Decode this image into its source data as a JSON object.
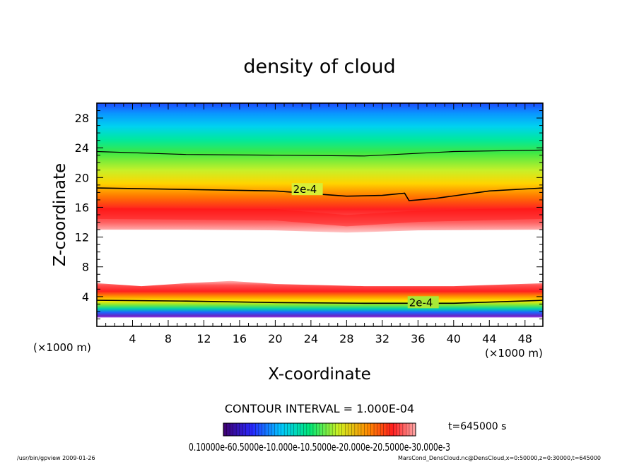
{
  "chart_data": {
    "type": "heatmap",
    "title": "density of cloud",
    "xlabel": "X-coordinate",
    "ylabel": "Z-coordinate",
    "x_unit": "(×1000 m)",
    "y_unit": "(×1000 m)",
    "xlim": [
      0,
      50
    ],
    "ylim": [
      0,
      30
    ],
    "x_ticks": [
      4,
      8,
      12,
      16,
      20,
      24,
      28,
      32,
      36,
      40,
      44,
      48
    ],
    "y_ticks": [
      4,
      8,
      12,
      16,
      20,
      24,
      28
    ],
    "contour_interval_label": "CONTOUR INTERVAL = 1.000E-04",
    "time_label": "t=645000 s",
    "colorbar_label": "0.10000e-60.5000e-10.000e-10.5000e-20.000e-20.5000e-30.000e-3",
    "contour_labels": [
      {
        "text": "2e-4",
        "x": 22,
        "z": 18.4
      },
      {
        "text": "2e-4",
        "x": 35,
        "z": 3.2
      }
    ],
    "upper_layer": {
      "top_boundary_z": 30,
      "bottom_boundary_z": [
        [
          0,
          13.0
        ],
        [
          10,
          13.0
        ],
        [
          20,
          12.9
        ],
        [
          28,
          12.6
        ],
        [
          36,
          12.9
        ],
        [
          50,
          13.0
        ]
      ],
      "contour_2e-4_z": [
        [
          0,
          18.6
        ],
        [
          10,
          18.4
        ],
        [
          20,
          18.2
        ],
        [
          28,
          17.5
        ],
        [
          32,
          17.6
        ],
        [
          34.5,
          17.9
        ],
        [
          35,
          16.9
        ],
        [
          38,
          17.2
        ],
        [
          44,
          18.2
        ],
        [
          50,
          18.6
        ]
      ],
      "contour_upper_z": [
        [
          0,
          23.5
        ],
        [
          10,
          23.1
        ],
        [
          20,
          23.0
        ],
        [
          30,
          22.9
        ],
        [
          40,
          23.5
        ],
        [
          50,
          23.7
        ]
      ],
      "peak_density_z": [
        [
          0,
          15.2
        ],
        [
          20,
          15.0
        ],
        [
          28,
          14.2
        ],
        [
          36,
          14.8
        ],
        [
          50,
          15.2
        ]
      ]
    },
    "lower_layer": {
      "top_boundary_z": [
        [
          0,
          5.8
        ],
        [
          5,
          5.4
        ],
        [
          10,
          5.8
        ],
        [
          15,
          6.1
        ],
        [
          20,
          5.7
        ],
        [
          30,
          5.4
        ],
        [
          40,
          5.4
        ],
        [
          50,
          5.8
        ]
      ],
      "contour_2e-4_z": [
        [
          0,
          3.5
        ],
        [
          10,
          3.4
        ],
        [
          20,
          3.2
        ],
        [
          30,
          3.1
        ],
        [
          40,
          3.1
        ],
        [
          50,
          3.5
        ]
      ],
      "bottom_boundary_z": [
        [
          0,
          1.2
        ],
        [
          25,
          1.2
        ],
        [
          50,
          1.2
        ]
      ]
    },
    "colormap": [
      "#5000a0",
      "#2020ff",
      "#00c8ff",
      "#00e878",
      "#a0ee30",
      "#ffee00",
      "#ff9000",
      "#ff1e1e",
      "#ffb4b4"
    ],
    "grid": false
  },
  "footer": {
    "left": "/usr/bin/gpview   2009-01-26",
    "right": "MarsCond_DensCloud.nc@DensCloud,x=0:50000,z=0:30000,t=645000"
  }
}
